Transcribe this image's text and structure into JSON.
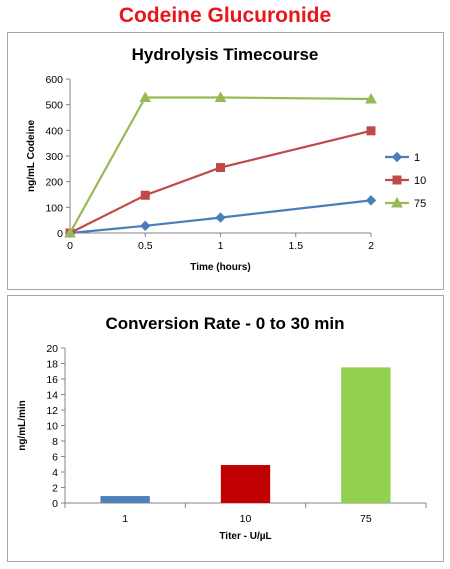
{
  "page_title": "Codeine Glucuronide",
  "colors": {
    "title_red": "#e8161b",
    "s1": "#4a7ebb",
    "s10": "#be4b48",
    "s75": "#98b954",
    "bar1": "#4f81bd",
    "bar10": "#c00000",
    "bar75": "#92d050"
  },
  "chart_data": [
    {
      "type": "line",
      "title": "Hydrolysis Timecourse",
      "xlabel": "Time (hours)",
      "ylabel": "ng/mL Codeine",
      "xlim": [
        0,
        2
      ],
      "ylim": [
        0,
        600
      ],
      "x_ticks": [
        "0",
        "0.5",
        "1",
        "1.5",
        "2"
      ],
      "y_ticks": [
        "0",
        "100",
        "200",
        "300",
        "400",
        "500",
        "600"
      ],
      "legend_position": "right",
      "x": [
        0,
        0.5,
        1,
        2
      ],
      "series": [
        {
          "name": "1",
          "marker": "diamond",
          "color": "#4a7ebb",
          "values": [
            0,
            28,
            60,
            127
          ]
        },
        {
          "name": "10",
          "marker": "square",
          "color": "#be4b48",
          "values": [
            0,
            147,
            255,
            398
          ]
        },
        {
          "name": "75",
          "marker": "triangle",
          "color": "#98b954",
          "values": [
            0,
            528,
            528,
            522
          ]
        }
      ]
    },
    {
      "type": "bar",
      "title": "Conversion Rate - 0 to 30 min",
      "xlabel": "Titer - U/µL",
      "ylabel": "ng/mL/min",
      "ylim": [
        0,
        20
      ],
      "y_ticks": [
        "0",
        "2",
        "4",
        "6",
        "8",
        "10",
        "12",
        "14",
        "16",
        "18",
        "20"
      ],
      "categories": [
        "1",
        "10",
        "75"
      ],
      "values": [
        0.9,
        4.9,
        17.5
      ],
      "colors": [
        "#4f81bd",
        "#c00000",
        "#92d050"
      ]
    }
  ]
}
